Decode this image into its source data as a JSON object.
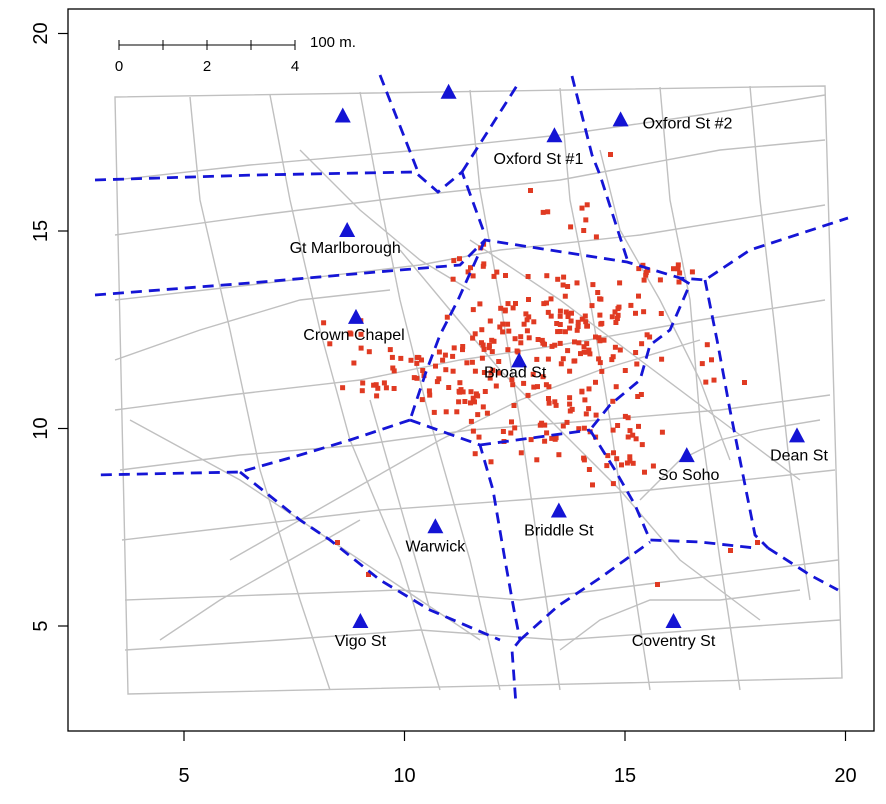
{
  "axes": {
    "x_range": [
      2.2,
      20.9
    ],
    "y_range": [
      2.2,
      20.6
    ],
    "x_ticks": [
      5,
      10,
      15,
      20
    ],
    "y_ticks": [
      5,
      10,
      15,
      20
    ]
  },
  "scale_bar": {
    "ticks": [
      "0",
      "2",
      "4"
    ],
    "label": "100 m."
  },
  "pumps": [
    {
      "name": "Broad St",
      "x": 12.6,
      "y": 11.7
    },
    {
      "name": "Crown Chapel",
      "x": 8.9,
      "y": 12.8
    },
    {
      "name": "Gt Marlborough",
      "x": 8.7,
      "y": 15.0
    },
    {
      "name": "Oxford St #1",
      "x": 13.4,
      "y": 17.4
    },
    {
      "name": "Oxford St #2",
      "x": 14.9,
      "y": 17.8
    },
    {
      "name": "",
      "x": 8.6,
      "y": 17.9
    },
    {
      "name": "",
      "x": 11.0,
      "y": 18.5
    },
    {
      "name": "So Soho",
      "x": 16.4,
      "y": 9.3
    },
    {
      "name": "Dean St",
      "x": 18.9,
      "y": 9.8
    },
    {
      "name": "Briddle St",
      "x": 13.5,
      "y": 7.9
    },
    {
      "name": "Warwick",
      "x": 10.7,
      "y": 7.5
    },
    {
      "name": "Vigo St",
      "x": 9.0,
      "y": 5.1
    },
    {
      "name": "Coventry St",
      "x": 16.1,
      "y": 5.1
    }
  ],
  "colors": {
    "pump": "#1414d4",
    "death": "#e03a22",
    "street": "#c0c0c0",
    "boundary": "#1515d6"
  }
}
